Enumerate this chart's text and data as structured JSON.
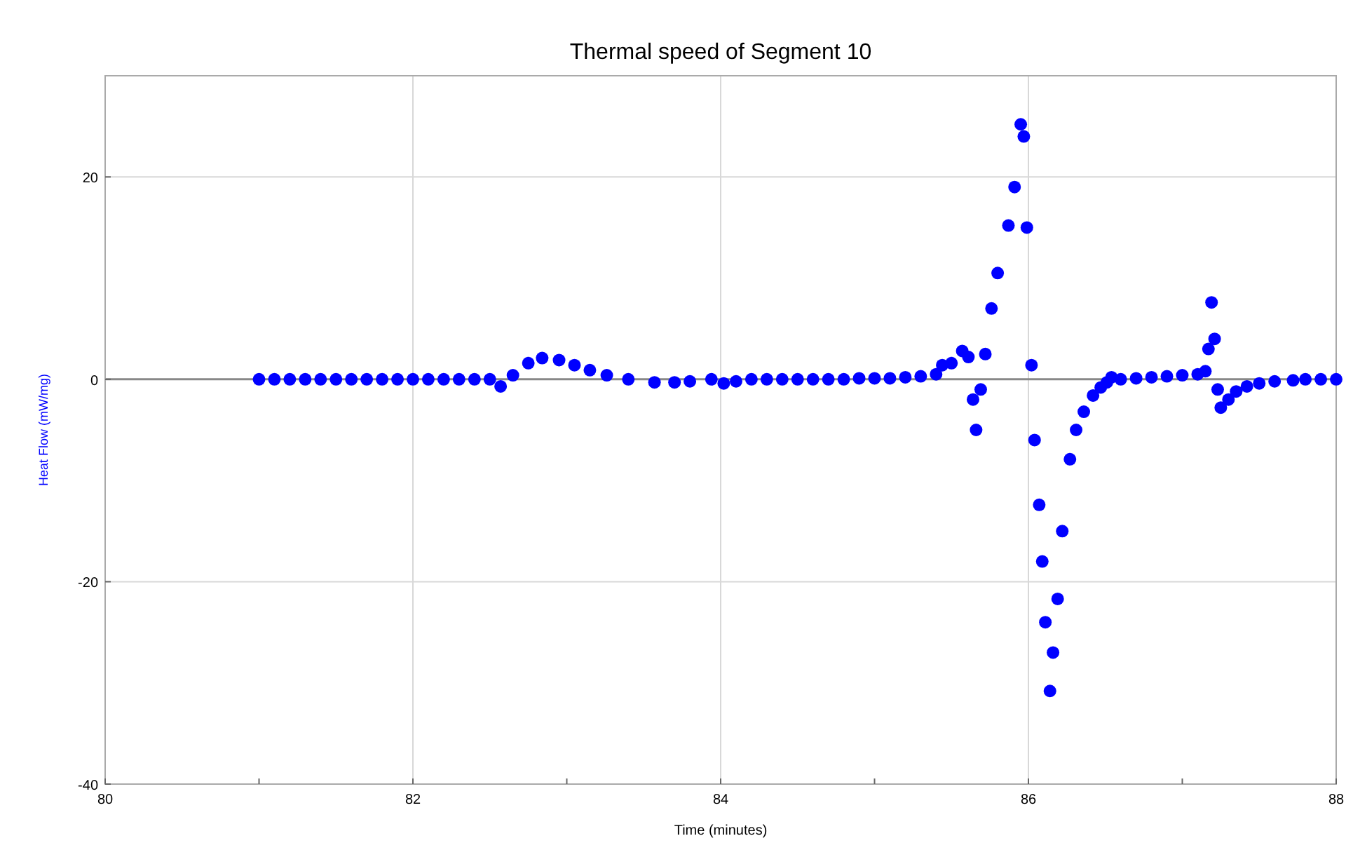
{
  "chart_data": {
    "type": "scatter",
    "title": "Thermal speed of Segment 10",
    "xlabel": "Time (minutes)",
    "ylabel": "Heat Flow (mW/mg)",
    "marker": "circle",
    "grid": true,
    "xlim": [
      80,
      88
    ],
    "xticks": [
      80,
      {
        "value": 81,
        "label": null
      },
      82,
      {
        "value": 83,
        "label": null
      },
      84,
      {
        "value": 85,
        "label": null
      },
      86,
      {
        "value": 87,
        "label": null
      },
      88
    ],
    "ylim": [
      -40,
      30
    ],
    "yticks": [
      -40,
      -20,
      0,
      20
    ],
    "series": [
      {
        "color": "#0000ff",
        "x": [
          81,
          81.1,
          81.2,
          81.3,
          81.4,
          81.5,
          81.6,
          81.7,
          81.8,
          81.9,
          82,
          82.1,
          82.2,
          82.3,
          82.4,
          82.5,
          82.57,
          82.65,
          82.75,
          82.84,
          82.95,
          83.05,
          83.15,
          83.26,
          83.4,
          83.57,
          83.7,
          83.8,
          83.94,
          84.02,
          84.1,
          84.2,
          84.3,
          84.4,
          84.5,
          84.6,
          84.7,
          84.8,
          84.9,
          85,
          85.1,
          85.2,
          85.3,
          85.4,
          85.44,
          85.5,
          85.57,
          85.61,
          85.64,
          85.66,
          85.69,
          85.72,
          85.76,
          85.8,
          85.87,
          85.91,
          85.95,
          85.97,
          85.99,
          86.02,
          86.04,
          86.07,
          86.09,
          86.11,
          86.14,
          86.16,
          86.19,
          86.22,
          86.27,
          86.31,
          86.36,
          86.42,
          86.47,
          86.51,
          86.54,
          86.6,
          86.7,
          86.8,
          86.9,
          87,
          87.1,
          87.15,
          87.17,
          87.19,
          87.21,
          87.23,
          87.25,
          87.3,
          87.35,
          87.42,
          87.5,
          87.6,
          87.72,
          87.8,
          87.9,
          88
        ],
        "values": [
          0,
          0,
          0,
          0,
          0,
          0,
          0,
          0,
          0,
          0,
          0,
          0,
          0,
          0,
          0,
          0,
          -0.7,
          0.4,
          1.6,
          2.1,
          1.9,
          1.4,
          0.9,
          0.4,
          0,
          -0.3,
          -0.3,
          -0.2,
          0,
          -0.4,
          -0.2,
          0,
          0,
          0,
          0,
          0,
          0,
          0,
          0.1,
          0.1,
          0.1,
          0.2,
          0.3,
          0.5,
          1.4,
          1.6,
          2.8,
          2.2,
          -2,
          -5,
          -1,
          2.5,
          7,
          10.5,
          15.2,
          19,
          25.2,
          24,
          15,
          1.4,
          -6,
          -12.4,
          -18,
          -24,
          -30.8,
          -27,
          -21.7,
          -15,
          -7.9,
          -5,
          -3.2,
          -1.6,
          -0.8,
          -0.3,
          0.2,
          0,
          0.1,
          0.2,
          0.3,
          0.4,
          0.5,
          0.8,
          3,
          7.6,
          4,
          -1,
          -2.8,
          -2,
          -1.2,
          -0.7,
          -0.4,
          -0.2,
          -0.1,
          0,
          0,
          0
        ]
      }
    ]
  }
}
